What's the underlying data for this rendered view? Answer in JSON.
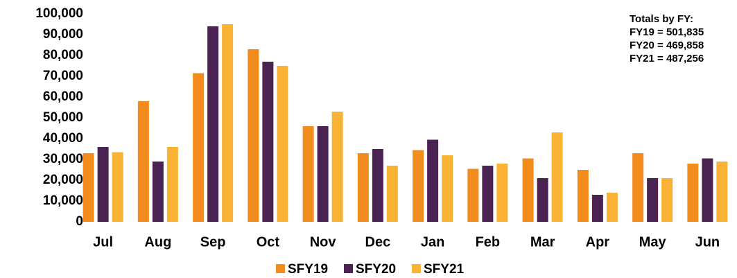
{
  "chart_data": {
    "type": "bar",
    "categories": [
      "Jul",
      "Aug",
      "Sep",
      "Oct",
      "Nov",
      "Dec",
      "Jan",
      "Feb",
      "Mar",
      "Apr",
      "May",
      "Jun"
    ],
    "series": [
      {
        "name": "SFY19",
        "color": "#f28c1c",
        "values": [
          33000,
          58000,
          71500,
          83000,
          46000,
          33000,
          34500,
          25500,
          30500,
          25000,
          33000,
          28000
        ]
      },
      {
        "name": "SFY20",
        "color": "#4b2352",
        "values": [
          36000,
          29000,
          94000,
          77000,
          46000,
          35000,
          39500,
          27000,
          21000,
          13000,
          21000,
          30500
        ]
      },
      {
        "name": "SFY21",
        "color": "#f9b233",
        "values": [
          33500,
          36000,
          95000,
          75000,
          53000,
          27000,
          32000,
          28000,
          43000,
          14000,
          21000,
          29000
        ]
      }
    ],
    "ylim": [
      0,
      100000
    ],
    "yticks": [
      0,
      {
        "value": 10000,
        "label": "10,000"
      },
      {
        "value": 20000,
        "label": "20,000"
      },
      {
        "value": 30000,
        "label": "30,000"
      },
      {
        "value": 40000,
        "label": "40,000"
      },
      {
        "value": 50000,
        "label": "50,000"
      },
      {
        "value": 60000,
        "label": "60,000"
      },
      {
        "value": 70000,
        "label": "70,000"
      },
      {
        "value": 80000,
        "label": "80,000"
      },
      {
        "value": 90000,
        "label": "90,000"
      },
      {
        "value": 100000,
        "label": "100,000"
      }
    ],
    "annotations": [
      "Totals by FY:",
      "FY19 = 501,835",
      "FY20 = 469,858",
      "FY21 = 487,256"
    ],
    "grid": false
  }
}
